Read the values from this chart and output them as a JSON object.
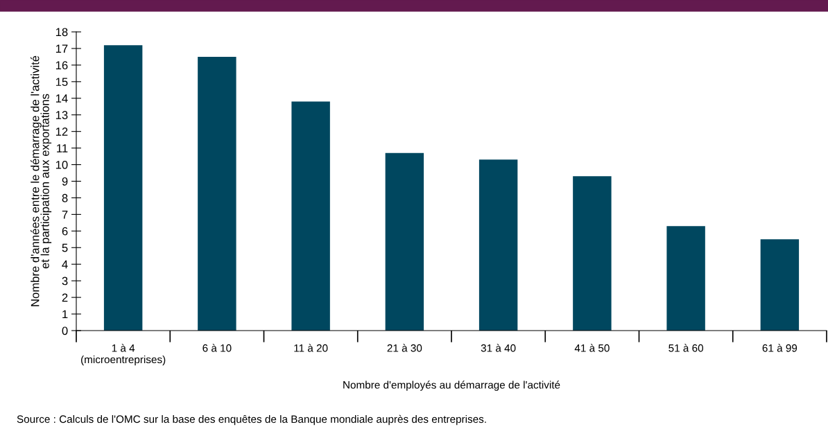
{
  "chart_data": {
    "type": "bar",
    "categories": [
      "1 à 4\n(microentreprises)",
      "6 à 10",
      "11 à 20",
      "21 à 30",
      "31 à 40",
      "41 à 50",
      "51 à 60",
      "61 à 99"
    ],
    "values": [
      17.2,
      16.5,
      13.8,
      10.7,
      10.3,
      9.3,
      6.3,
      5.5
    ],
    "color": "#00475f",
    "xlabel": "Nombre d'employés au démarrage de l'activité",
    "ylabel": "Nombre d'années entre le démarrage de l'activité\net la participation aux exportations",
    "ylim": [
      0,
      18
    ],
    "yticks": [
      0,
      1,
      2,
      3,
      4,
      5,
      6,
      7,
      8,
      9,
      10,
      11,
      12,
      13,
      14,
      15,
      16,
      17,
      18
    ],
    "grid": false,
    "legend": false,
    "annotations": [
      "Source : Calculs de l'OMC sur la base des enquêtes de la Banque mondiale auprès des entreprises."
    ]
  }
}
